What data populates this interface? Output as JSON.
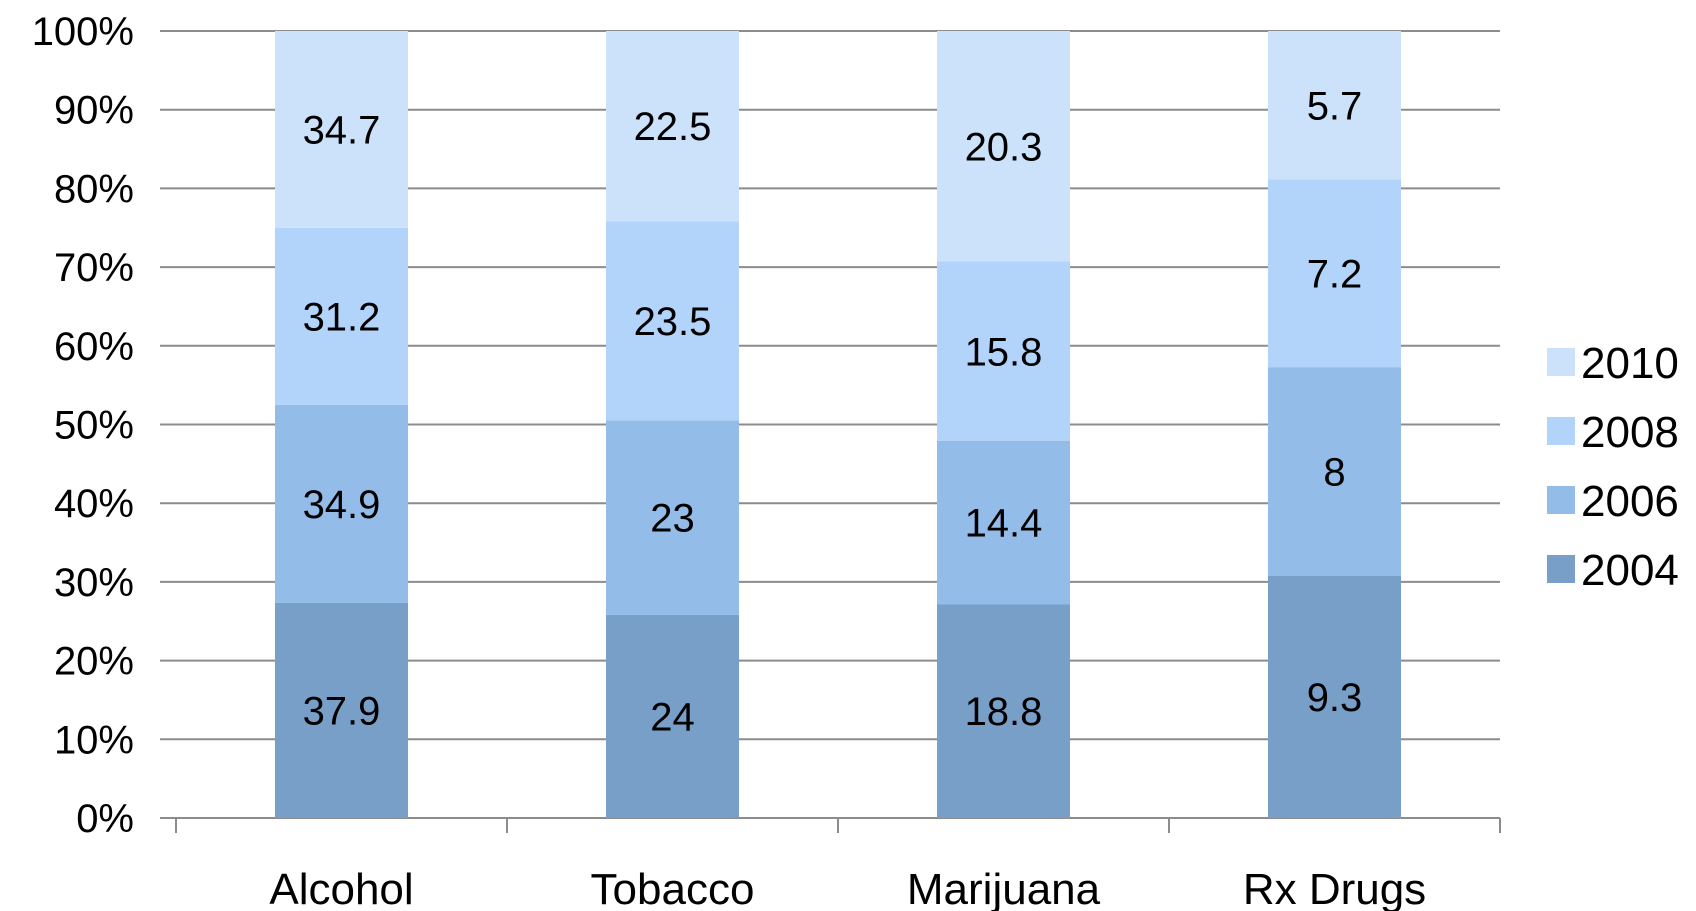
{
  "chart_data": {
    "type": "bar",
    "stacked": "percent",
    "categories": [
      "Alcohol",
      "Tobacco",
      "Marijuana",
      "Rx Drugs"
    ],
    "series": [
      {
        "name": "2004",
        "values": [
          37.9,
          24,
          18.8,
          9.3
        ],
        "color": "#779fc8"
      },
      {
        "name": "2006",
        "values": [
          34.9,
          23,
          14.4,
          8
        ],
        "color": "#93bce9"
      },
      {
        "name": "2008",
        "values": [
          31.2,
          23.5,
          15.8,
          7.2
        ],
        "color": "#b2d3fa"
      },
      {
        "name": "2010",
        "values": [
          34.7,
          22.5,
          20.3,
          5.7
        ],
        "color": "#cce2fb"
      }
    ],
    "y_ticks": [
      "0%",
      "10%",
      "20%",
      "30%",
      "40%",
      "50%",
      "60%",
      "70%",
      "80%",
      "90%",
      "100%"
    ],
    "ylim": [
      0,
      100
    ],
    "grid": true,
    "legend": {
      "position": "right",
      "order": [
        "2010",
        "2008",
        "2006",
        "2004"
      ]
    },
    "colors": {
      "gridline": "#8c8c8c",
      "axis": "#8c8c8c"
    }
  }
}
